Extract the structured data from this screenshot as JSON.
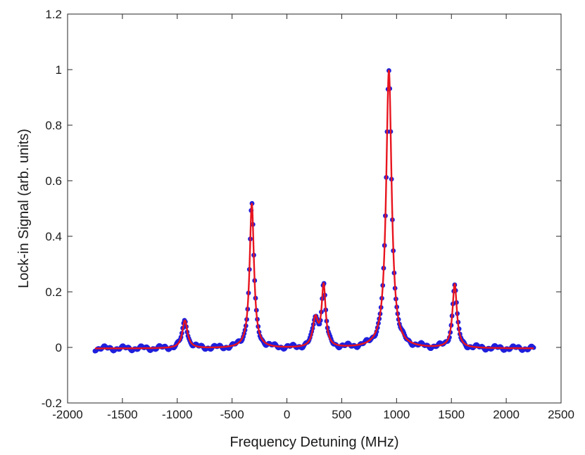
{
  "chart_data": {
    "type": "scatter",
    "title": "",
    "xlabel": "Frequency Detuning (MHz)",
    "ylabel": "Lock-in Signal (arb. units)",
    "xlim": [
      -2000,
      2500
    ],
    "ylim": [
      -0.2,
      1.2
    ],
    "xticks": [
      -2000,
      -1500,
      -1000,
      -500,
      0,
      500,
      1000,
      1500,
      2000,
      2500
    ],
    "yticks": [
      -0.2,
      0,
      0.2,
      0.4,
      0.6,
      0.8,
      1,
      1.2
    ],
    "xtick_labels": [
      "-2000",
      "-1500",
      "-1000",
      "-500",
      "0",
      "500",
      "1000",
      "1500",
      "2000",
      "2500"
    ],
    "ytick_labels": [
      "-0.2",
      "0",
      "0.2",
      "0.4",
      "0.6",
      "0.8",
      "1",
      "1.2"
    ],
    "grid": false,
    "legend": "none",
    "x_range": [
      -1750,
      2250
    ],
    "peaks": [
      {
        "center": -930,
        "height": 0.1,
        "width": 28
      },
      {
        "center": -320,
        "height": 0.52,
        "width": 24
      },
      {
        "center": 260,
        "height": 0.1,
        "width": 28
      },
      {
        "center": 335,
        "height": 0.22,
        "width": 22
      },
      {
        "center": 930,
        "height": 1.0,
        "width": 30
      },
      {
        "center": 1530,
        "height": 0.23,
        "width": 24
      }
    ],
    "series": [
      {
        "kind": "markers",
        "color": "#1f1fdc",
        "point_color": "#2323c8"
      },
      {
        "kind": "line",
        "color": "#e8141e"
      }
    ]
  }
}
